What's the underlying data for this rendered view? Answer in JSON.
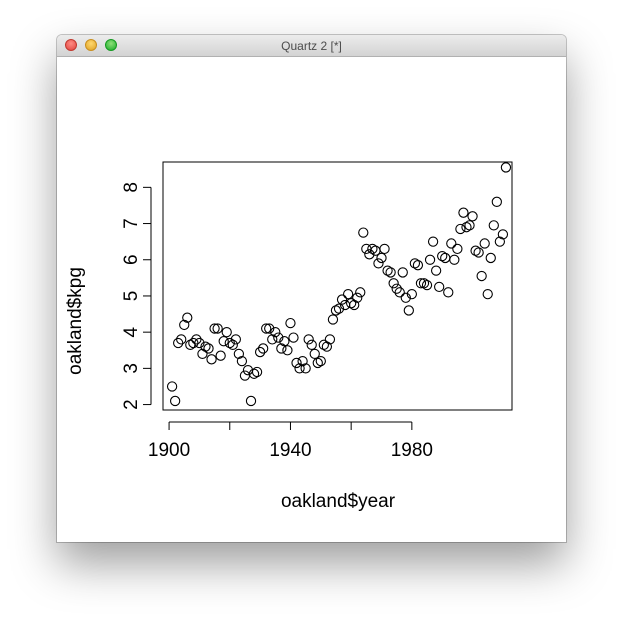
{
  "window": {
    "title": "Quartz 2 [*]"
  },
  "chart_data": {
    "type": "scatter",
    "title": "",
    "xlabel": "oakland$year",
    "ylabel": "oakland$kpg",
    "xlim": [
      1898,
      2013
    ],
    "ylim": [
      1.85,
      8.7
    ],
    "x_ticks": [
      1900,
      1940,
      1980
    ],
    "y_ticks": [
      2,
      3,
      4,
      5,
      6,
      7,
      8
    ],
    "grid": false,
    "legend": "none",
    "marker": "open-circle",
    "x": [
      1901,
      1902,
      1903,
      1904,
      1905,
      1906,
      1907,
      1908,
      1909,
      1910,
      1911,
      1912,
      1913,
      1914,
      1915,
      1916,
      1917,
      1918,
      1919,
      1920,
      1921,
      1922,
      1923,
      1924,
      1925,
      1926,
      1927,
      1928,
      1929,
      1930,
      1931,
      1932,
      1933,
      1934,
      1935,
      1936,
      1937,
      1938,
      1939,
      1940,
      1941,
      1942,
      1943,
      1944,
      1945,
      1946,
      1947,
      1948,
      1949,
      1950,
      1951,
      1952,
      1953,
      1954,
      1955,
      1956,
      1957,
      1958,
      1959,
      1960,
      1961,
      1962,
      1963,
      1964,
      1965,
      1966,
      1967,
      1968,
      1969,
      1970,
      1971,
      1972,
      1973,
      1974,
      1975,
      1976,
      1977,
      1978,
      1979,
      1980,
      1981,
      1982,
      1983,
      1984,
      1985,
      1986,
      1987,
      1988,
      1989,
      1990,
      1991,
      1992,
      1993,
      1994,
      1995,
      1996,
      1997,
      1998,
      1999,
      2000,
      2001,
      2002,
      2003,
      2004,
      2005,
      2006,
      2007,
      2008,
      2009,
      2010,
      2011
    ],
    "y": [
      2.5,
      2.1,
      3.7,
      3.8,
      4.2,
      4.4,
      3.65,
      3.7,
      3.8,
      3.7,
      3.4,
      3.6,
      3.55,
      3.25,
      4.1,
      4.1,
      3.35,
      3.75,
      4.0,
      3.7,
      3.65,
      3.8,
      3.4,
      3.2,
      2.8,
      2.95,
      2.1,
      2.85,
      2.9,
      3.45,
      3.55,
      4.1,
      4.1,
      3.8,
      4.0,
      3.85,
      3.55,
      3.75,
      3.5,
      4.25,
      3.85,
      3.15,
      3.0,
      3.2,
      3.0,
      3.8,
      3.65,
      3.4,
      3.15,
      3.2,
      3.65,
      3.6,
      3.8,
      4.35,
      4.6,
      4.65,
      4.9,
      4.75,
      5.05,
      4.8,
      4.75,
      4.95,
      5.1,
      6.75,
      6.3,
      6.15,
      6.3,
      6.25,
      5.9,
      6.05,
      6.3,
      5.7,
      5.65,
      5.35,
      5.2,
      5.1,
      5.65,
      4.95,
      4.6,
      5.05,
      5.9,
      5.85,
      5.35,
      5.35,
      5.3,
      6.0,
      6.5,
      5.7,
      5.25,
      6.1,
      6.05,
      5.1,
      6.45,
      6.0,
      6.3,
      6.85,
      7.3,
      6.9,
      6.95,
      7.2,
      6.25,
      6.2,
      5.55,
      6.45,
      5.05,
      6.05,
      6.95,
      7.6,
      6.5,
      6.7,
      8.55
    ]
  }
}
